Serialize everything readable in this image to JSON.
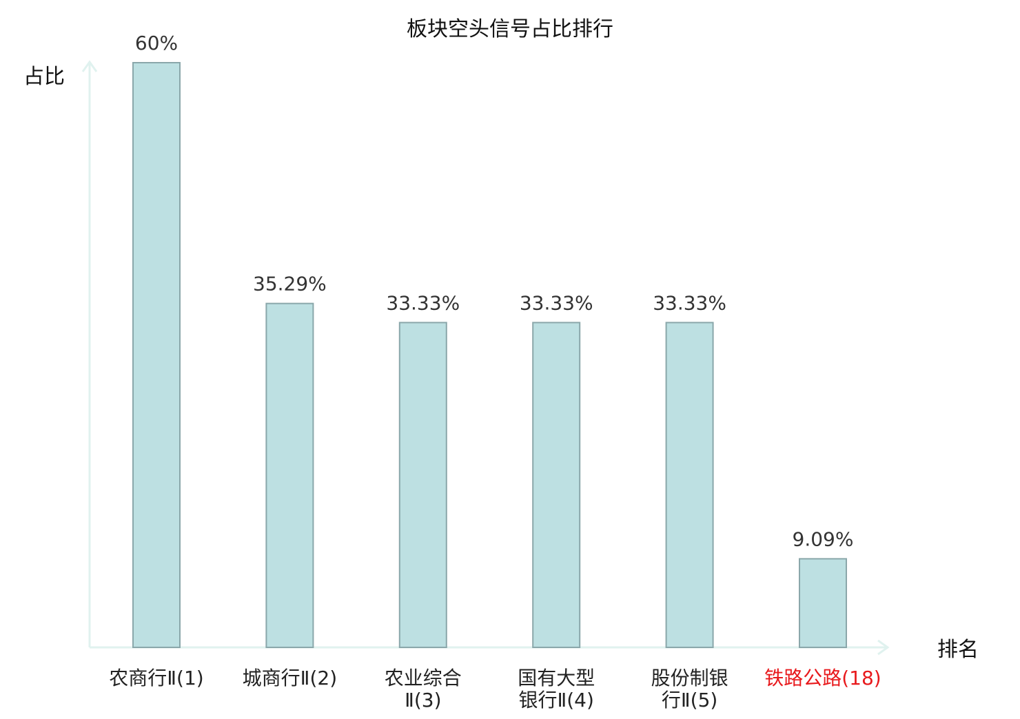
{
  "chart_data": {
    "type": "bar",
    "title": "板块空头信号占比排行",
    "ylabel": "占比",
    "xlabel": "排名",
    "ylim": [
      0,
      60
    ],
    "grid": false,
    "categories": [
      {
        "lines": [
          "农商行Ⅱ(1)"
        ],
        "highlight": false
      },
      {
        "lines": [
          "城商行Ⅱ(2)"
        ],
        "highlight": false
      },
      {
        "lines": [
          "农业综合",
          "Ⅱ(3)"
        ],
        "highlight": false
      },
      {
        "lines": [
          "国有大型",
          "银行Ⅱ(4)"
        ],
        "highlight": false
      },
      {
        "lines": [
          "股份制银",
          "行Ⅱ(5)"
        ],
        "highlight": false
      },
      {
        "lines": [
          "铁路公路(18)"
        ],
        "highlight": true
      }
    ],
    "values": [
      60,
      35.29,
      33.33,
      33.33,
      33.33,
      9.09
    ],
    "value_labels": [
      "60%",
      "35.29%",
      "33.33%",
      "33.33%",
      "33.33%",
      "9.09%"
    ]
  },
  "colors": {
    "bar_fill": "#bde0e2",
    "bar_stroke": "#8aa7aa",
    "axis": "#e0f2ef",
    "text": "#333333",
    "label_text": "#222222",
    "highlight": "#e8191c"
  }
}
